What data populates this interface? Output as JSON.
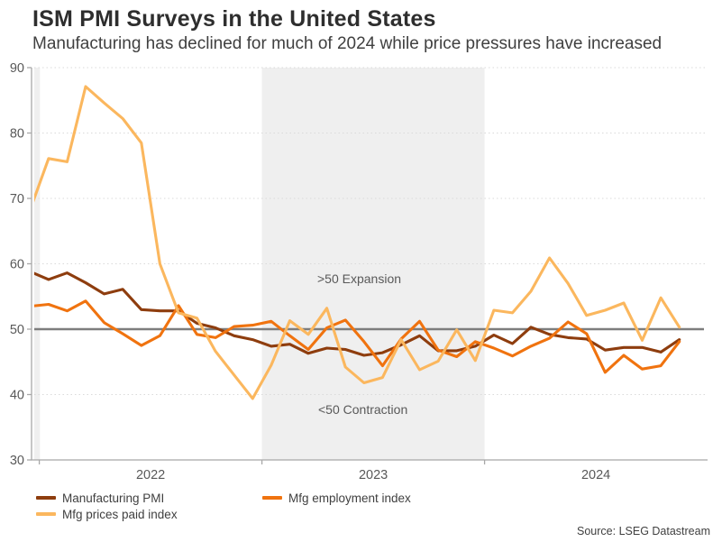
{
  "header": {
    "title": "ISM PMI Surveys in the United States",
    "subtitle": "Manufacturing has declined for much of 2024 while price pressures have increased"
  },
  "chart_data": {
    "type": "line",
    "x_unit": "month",
    "months": [
      "Dec-21",
      "Jan-22",
      "Feb-22",
      "Mar-22",
      "Apr-22",
      "May-22",
      "Jun-22",
      "Jul-22",
      "Aug-22",
      "Sep-22",
      "Oct-22",
      "Nov-22",
      "Dec-22",
      "Jan-23",
      "Feb-23",
      "Mar-23",
      "Apr-23",
      "May-23",
      "Jun-23",
      "Jul-23",
      "Aug-23",
      "Sep-23",
      "Oct-23",
      "Nov-23",
      "Dec-23",
      "Jan-24",
      "Feb-24",
      "Mar-24",
      "Apr-24",
      "May-24",
      "Jun-24",
      "Jul-24",
      "Aug-24",
      "Sep-24",
      "Oct-24",
      "Nov-24"
    ],
    "series": [
      {
        "name": "Manufacturing PMI",
        "color": "#8e3d0e",
        "values": [
          58.8,
          57.6,
          58.6,
          57.1,
          55.4,
          56.1,
          53.0,
          52.8,
          52.8,
          50.9,
          50.2,
          49.0,
          48.4,
          47.4,
          47.7,
          46.3,
          47.1,
          46.9,
          46.0,
          46.4,
          47.6,
          49.0,
          46.7,
          46.7,
          47.4,
          49.1,
          47.8,
          50.3,
          49.2,
          48.7,
          48.5,
          46.8,
          47.2,
          47.2,
          46.5,
          48.4
        ]
      },
      {
        "name": "Mfg employment index",
        "color": "#f0730f",
        "values": [
          53.5,
          53.8,
          52.8,
          54.3,
          51.0,
          49.3,
          47.5,
          49.0,
          53.6,
          49.2,
          48.7,
          50.4,
          50.6,
          51.2,
          49.0,
          46.9,
          50.2,
          51.4,
          48.1,
          44.4,
          48.5,
          51.2,
          46.8,
          45.8,
          48.1,
          47.1,
          45.9,
          47.4,
          48.6,
          51.1,
          49.3,
          43.4,
          46.0,
          43.9,
          44.4,
          48.1
        ]
      },
      {
        "name": "Mfg prices paid index",
        "color": "#fbb75e",
        "values": [
          68.2,
          76.1,
          75.6,
          87.1,
          84.6,
          82.2,
          78.5,
          60.0,
          52.5,
          51.7,
          46.6,
          43.0,
          39.4,
          44.5,
          51.3,
          49.2,
          53.2,
          44.2,
          41.8,
          42.6,
          48.4,
          43.8,
          45.1,
          49.9,
          45.2,
          52.9,
          52.5,
          55.8,
          60.9,
          57.0,
          52.1,
          52.9,
          54.0,
          48.3,
          54.8,
          50.3
        ]
      }
    ],
    "ylim": [
      30,
      90
    ],
    "yticks": [
      90,
      80,
      70,
      60,
      50,
      40,
      30
    ],
    "year_labels": [
      "2022",
      "2023",
      "2024"
    ],
    "reference_line": {
      "value": 50,
      "color": "#7d7d7d"
    },
    "shaded_year_band": {
      "year": "2023",
      "color": "#efefef"
    },
    "grid": "dotted-horizontal",
    "annotations": [
      {
        "text": ">50 Expansion"
      },
      {
        "text": "<50 Contraction"
      }
    ],
    "axis_color": "#a8a8a8",
    "tick_label_color": "#595959",
    "gridline_color": "#dadada"
  },
  "legend": {
    "items": [
      {
        "label": "Manufacturing PMI",
        "color": "#8e3d0e"
      },
      {
        "label": "Mfg employment index",
        "color": "#f0730f"
      },
      {
        "label": "Mfg prices paid index",
        "color": "#fbb75e"
      }
    ]
  },
  "source": "Source: LSEG Datastream"
}
